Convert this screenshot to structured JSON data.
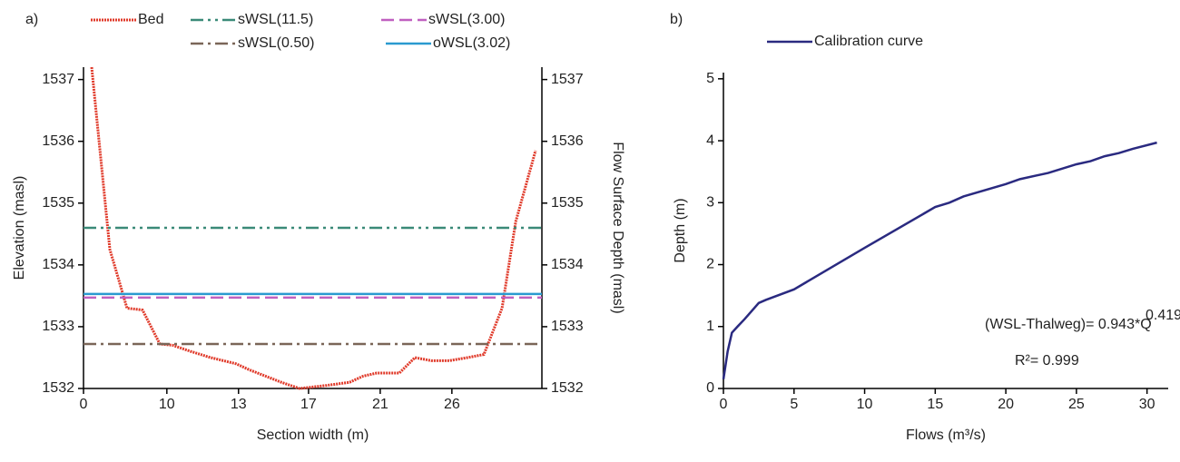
{
  "chart_data": [
    {
      "type": "line",
      "panel_label": "a)",
      "x_label": "Section width (m)",
      "y_label": "Elevation (masl)",
      "y2_label": "Flow Surface Depth (masl)",
      "xlim": [
        0,
        27.5
      ],
      "xticks": [
        0,
        {
          "value": 5.0,
          "label": "10"
        },
        {
          "value": 9.3,
          "label": "13"
        },
        {
          "value": 13.5,
          "label": "17"
        },
        {
          "value": 17.8,
          "label": "21"
        },
        {
          "value": 22.1,
          "label": "26"
        }
      ],
      "ylim": [
        1532,
        1537.2
      ],
      "yticks": [
        1532,
        1533,
        1534,
        1535,
        1536,
        1537
      ],
      "y2lim": [
        1532,
        1537.2
      ],
      "y2ticks": [
        1532,
        1533,
        1534,
        1535,
        1536,
        1537
      ],
      "series": [
        {
          "name": "Bed",
          "color": "#e03a2a",
          "dash": "dotted",
          "x": [
            0.49,
            1.58,
            2.61,
            3.54,
            4.58,
            5.34,
            6.43,
            7.63,
            9.15,
            9.97,
            11.87,
            12.96,
            14.6,
            15.96,
            16.78,
            17.59,
            18.95,
            19.88,
            20.86,
            21.95,
            23.04,
            24.02,
            25.11,
            25.93,
            27.12
          ],
          "values": [
            1537.2,
            1534.25,
            1533.3,
            1533.27,
            1532.72,
            1532.7,
            1532.6,
            1532.5,
            1532.4,
            1532.3,
            1532.1,
            1532.0,
            1532.05,
            1532.1,
            1532.2,
            1532.25,
            1532.25,
            1532.5,
            1532.45,
            1532.45,
            1532.5,
            1532.55,
            1533.3,
            1534.7,
            1535.85
          ]
        },
        {
          "name": "sWSL(11.5)",
          "color": "#3a8a78",
          "dash": "dash-dot-dot",
          "x": [
            0,
            27.5
          ],
          "values": [
            1534.6,
            1534.6
          ]
        },
        {
          "name": "sWSL(3.00)",
          "color": "#c060c0",
          "dash": "dashed",
          "x": [
            0,
            27.5
          ],
          "values": [
            1533.47,
            1533.47
          ]
        },
        {
          "name": "sWSL(0.50)",
          "color": "#7a6658",
          "dash": "dash-dot",
          "x": [
            0,
            27.5
          ],
          "values": [
            1532.72,
            1532.72
          ]
        },
        {
          "name": "oWSL(3.02)",
          "color": "#2a9ad0",
          "dash": "solid",
          "x": [
            0,
            27.5
          ],
          "values": [
            1533.53,
            1533.53
          ]
        }
      ]
    },
    {
      "type": "line",
      "panel_label": "b)",
      "x_label": "Flows (m³/s)",
      "y_label": "Depth (m)",
      "xlim": [
        0,
        31.5
      ],
      "xticks": [
        0,
        5,
        10,
        15,
        20,
        25,
        30
      ],
      "ylim": [
        0,
        5.1
      ],
      "yticks": [
        0,
        1,
        2,
        3,
        4,
        5
      ],
      "annotations": [
        "(WSL-Thalweg)= 0.943*Q",
        "0.419",
        "R²= 0.999"
      ],
      "series": [
        {
          "name": "Calibration curve",
          "color": "#2a2a80",
          "dash": "solid",
          "x": [
            0,
            0.3,
            0.6,
            1.0,
            1.5,
            2.0,
            2.5,
            3,
            5,
            10,
            15,
            16,
            17,
            20,
            21,
            23,
            25,
            26,
            27,
            28,
            29,
            30.7
          ],
          "values": [
            0.15,
            0.6,
            0.9,
            1.0,
            1.12,
            1.25,
            1.38,
            1.43,
            1.6,
            2.27,
            2.93,
            3.0,
            3.1,
            3.3,
            3.38,
            3.48,
            3.62,
            3.67,
            3.75,
            3.8,
            3.87,
            3.97
          ]
        }
      ]
    }
  ]
}
